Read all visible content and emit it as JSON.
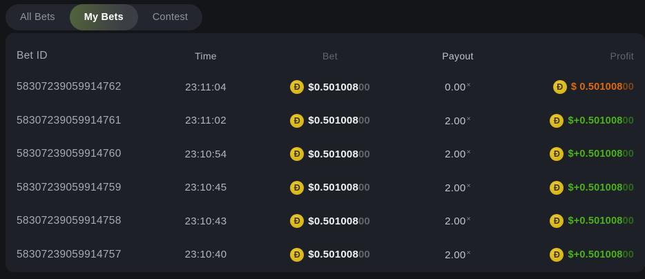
{
  "tabs": [
    {
      "label": "All Bets",
      "active": false
    },
    {
      "label": "My Bets",
      "active": true
    },
    {
      "label": "Contest",
      "active": false
    }
  ],
  "currency_icon": {
    "name": "dogecoin-icon",
    "symbol": "Đ"
  },
  "colors": {
    "panel_bg": "#1e2027",
    "page_bg": "#141519",
    "coin_gold": "#d9b715",
    "win_green": "#4db318",
    "loss_orange": "#dd6a0e",
    "active_tab_green": "#52653a"
  },
  "table": {
    "headers": [
      "Bet ID",
      "Time",
      "Bet",
      "Payout",
      "Profit"
    ],
    "mult_symbol": "×",
    "rows": [
      {
        "bet_id": "58307239059914762",
        "time": "23:11:04",
        "bet": {
          "value": "$0.501008",
          "trailing": "00"
        },
        "payout": {
          "value": "0.00"
        },
        "profit": {
          "prefix": "$ ",
          "value": "0.501008",
          "trailing": "00",
          "state": "loss"
        }
      },
      {
        "bet_id": "58307239059914761",
        "time": "23:11:02",
        "bet": {
          "value": "$0.501008",
          "trailing": "00"
        },
        "payout": {
          "value": "2.00"
        },
        "profit": {
          "prefix": "$+",
          "value": "0.501008",
          "trailing": "00",
          "state": "win"
        }
      },
      {
        "bet_id": "58307239059914760",
        "time": "23:10:54",
        "bet": {
          "value": "$0.501008",
          "trailing": "00"
        },
        "payout": {
          "value": "2.00"
        },
        "profit": {
          "prefix": "$+",
          "value": "0.501008",
          "trailing": "00",
          "state": "win"
        }
      },
      {
        "bet_id": "58307239059914759",
        "time": "23:10:45",
        "bet": {
          "value": "$0.501008",
          "trailing": "00"
        },
        "payout": {
          "value": "2.00"
        },
        "profit": {
          "prefix": "$+",
          "value": "0.501008",
          "trailing": "00",
          "state": "win"
        }
      },
      {
        "bet_id": "58307239059914758",
        "time": "23:10:43",
        "bet": {
          "value": "$0.501008",
          "trailing": "00"
        },
        "payout": {
          "value": "2.00"
        },
        "profit": {
          "prefix": "$+",
          "value": "0.501008",
          "trailing": "00",
          "state": "win"
        }
      },
      {
        "bet_id": "58307239059914757",
        "time": "23:10:40",
        "bet": {
          "value": "$0.501008",
          "trailing": "00"
        },
        "payout": {
          "value": "2.00"
        },
        "profit": {
          "prefix": "$+",
          "value": "0.501008",
          "trailing": "00",
          "state": "win"
        }
      }
    ]
  }
}
